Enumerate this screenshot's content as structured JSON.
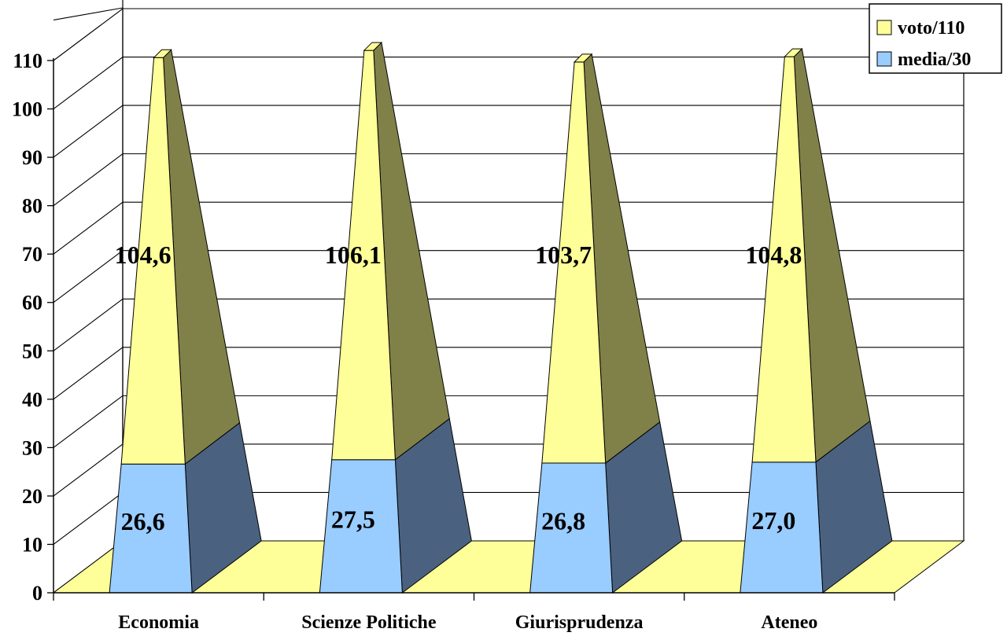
{
  "chart_data": {
    "type": "bar",
    "style": "3d-stacked-pyramid",
    "title": "",
    "xlabel": "",
    "ylabel": "",
    "categories": [
      "Economia",
      "Scienze Politiche",
      "Giurisprudenza",
      "Ateneo"
    ],
    "series": [
      {
        "name": "media/30",
        "values": [
          26.6,
          27.5,
          26.8,
          27.0
        ],
        "labels": [
          "26,6",
          "27,5",
          "26,8",
          "27,0"
        ],
        "color": "#99ccff",
        "side_color": "#4b6180"
      },
      {
        "name": "voto/110",
        "values": [
          104.6,
          106.1,
          103.7,
          104.8
        ],
        "labels": [
          "104,6",
          "106,1",
          "103,7",
          "104,8"
        ],
        "color": "#ffff99",
        "side_color": "#808049"
      }
    ],
    "ylim": [
      0,
      110
    ],
    "yticks": [
      0,
      10,
      20,
      30,
      40,
      50,
      60,
      70,
      80,
      90,
      100,
      110
    ],
    "grid": true,
    "legend_position": "top-right",
    "floor_color": "#ffff99"
  }
}
